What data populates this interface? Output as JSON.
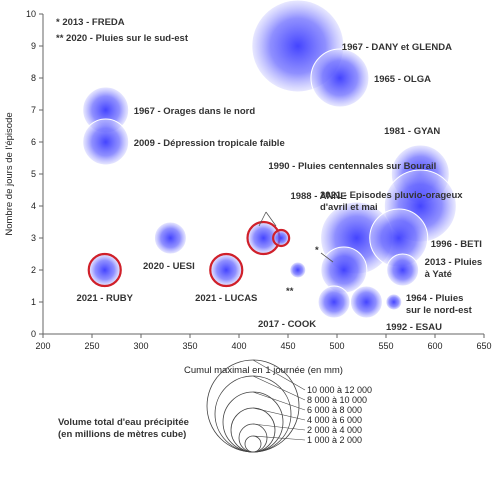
{
  "chart_data": {
    "type": "bubble",
    "xlabel": "Cumul maximal en 1 journée (en mm)",
    "ylabel": "Nombre de jours de l'épisode",
    "xlim": [
      200,
      650
    ],
    "ylim": [
      0,
      10
    ],
    "x_ticks": [
      "200",
      "250",
      "300",
      "350",
      "400",
      "450",
      "500",
      "550",
      "600",
      "650"
    ],
    "y_ticks": [
      "0",
      "1",
      "2",
      "3",
      "4",
      "5",
      "6",
      "7",
      "8",
      "9",
      "10"
    ],
    "grid": false,
    "bubble_color": "#3a3aff",
    "highlight_color": "#d0202a",
    "notes": [
      "* 2013 - FREDA",
      "** 2020 - Pluies sur le sud-est"
    ],
    "points": [
      {
        "x": 460,
        "y": 9,
        "size": 6,
        "label": [
          "1967 - DANY et GLENDA"
        ]
      },
      {
        "x": 503,
        "y": 8,
        "size": 4,
        "label": [
          "1965 - OLGA"
        ]
      },
      {
        "x": 264,
        "y": 7,
        "size": 3,
        "label": [
          "1967 - Orages dans le nord"
        ]
      },
      {
        "x": 264,
        "y": 6,
        "size": 3,
        "label": [
          "2009 - Dépression tropicale faible"
        ]
      },
      {
        "x": 585,
        "y": 5,
        "size": 4,
        "label": [
          "1981 - GYAN"
        ]
      },
      {
        "x": 585,
        "y": 4,
        "size": 5,
        "label": [
          "1990 - Pluies centennales sur Bourail"
        ]
      },
      {
        "x": 520,
        "y": 3,
        "size": 5,
        "label": [
          "1988 - ANNE"
        ]
      },
      {
        "x": 563,
        "y": 3,
        "size": 4,
        "label": [
          "1996 - BETI"
        ]
      },
      {
        "x": 330,
        "y": 3,
        "size": 2,
        "label": []
      },
      {
        "x": 425,
        "y": 3,
        "size": 2,
        "highlight": true,
        "label": []
      },
      {
        "x": 443,
        "y": 3,
        "size": 1,
        "highlight": true,
        "label": []
      },
      {
        "x": 263,
        "y": 2,
        "size": 2,
        "highlight": true,
        "label": [
          "2021 - RUBY"
        ]
      },
      {
        "x": 387,
        "y": 2,
        "size": 2,
        "highlight": true,
        "label": [
          "2021 - LUCAS"
        ]
      },
      {
        "x": 460,
        "y": 2,
        "size": 1,
        "label": []
      },
      {
        "x": 507,
        "y": 2,
        "size": 3,
        "label": []
      },
      {
        "x": 567,
        "y": 2,
        "size": 2,
        "label": [
          "2013 - Pluies",
          "à Yaté"
        ]
      },
      {
        "x": 497,
        "y": 1,
        "size": 2,
        "label": []
      },
      {
        "x": 530,
        "y": 1,
        "size": 2,
        "label": []
      },
      {
        "x": 558,
        "y": 1,
        "size": 1,
        "label": [
          "1964 - Pluies",
          "sur le nord-est"
        ]
      }
    ],
    "free_labels": [
      {
        "lines": [
          "2021 - Episodes pluvio-orageux",
          "d'avril et mai"
        ]
      },
      {
        "lines": [
          "2020 - UESI"
        ]
      },
      {
        "lines": [
          "*"
        ]
      },
      {
        "lines": [
          "**"
        ]
      },
      {
        "lines": [
          "2017 - COOK"
        ]
      },
      {
        "lines": [
          "1992 - ESAU"
        ]
      }
    ],
    "size_legend": {
      "title": [
        "Volume total d'eau précipitée",
        "(en millions de mètres cube)"
      ],
      "classes": [
        "10 000 à 12 000",
        "8 000 à 10 000",
        "6 000 à 8 000",
        "4 000 à 6 000",
        "2 000 à 4 000",
        "1 000 à 2 000"
      ]
    }
  }
}
